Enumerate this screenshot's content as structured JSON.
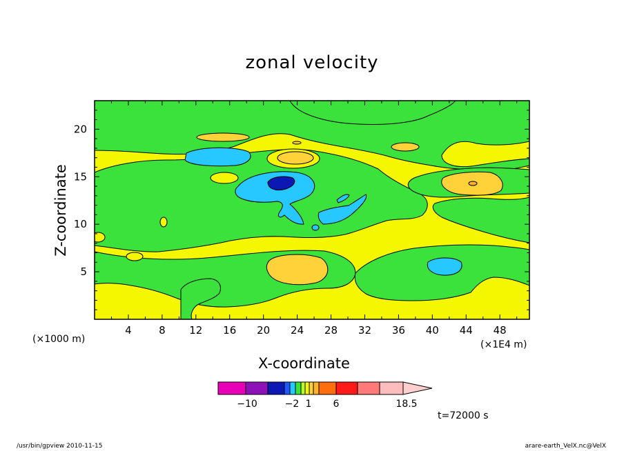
{
  "chart_data": {
    "type": "heatmap",
    "title": "zonal velocity",
    "xlabel": "X-coordinate",
    "ylabel": "Z-coordinate",
    "x_unit": "(×1000 m)",
    "x_scale": "(×1E4 m)",
    "time_label": "t=72000 s",
    "xlim": [
      0,
      51.5
    ],
    "ylim": [
      0,
      23
    ],
    "x_ticks": [
      "4",
      "8",
      "12",
      "16",
      "20",
      "24",
      "28",
      "32",
      "36",
      "40",
      "44",
      "48"
    ],
    "y_ticks": [
      "5",
      "10",
      "15",
      "20"
    ],
    "colorbar": {
      "colors": [
        "#e800b8",
        "#8c12b8",
        "#0c18b4",
        "#1e5aff",
        "#26c8ff",
        "#3ce23c",
        "#b8ff28",
        "#f4f700",
        "#ffd23a",
        "#ffb22a",
        "#ff6e0e",
        "#ff1a1a",
        "#ff7a78",
        "#ffbcbc"
      ],
      "labels": [
        "-10",
        "-2",
        "1",
        "6",
        "18.5"
      ]
    },
    "series": [
      {
        "level": "-2",
        "values": [
          {
            "x": 22.5,
            "z": 14.2
          }
        ]
      },
      {
        "level": "-1",
        "values": [
          {
            "x": 15,
            "z": 17.1
          },
          {
            "x": 22.5,
            "z": 13.5
          },
          {
            "x": 41,
            "z": 6
          }
        ]
      },
      {
        "level": "1",
        "values": [
          {
            "x": 15,
            "z": 19.2
          },
          {
            "x": 24,
            "z": 16.8
          },
          {
            "x": 35.5,
            "z": 18.2
          },
          {
            "x": 44,
            "z": 14.5
          },
          {
            "x": 24,
            "z": 5.3
          }
        ]
      }
    ]
  },
  "footer": {
    "left": "/usr/bin/gpview   2010-11-15",
    "right": "arare-earth_VelX.nc@VelX"
  }
}
